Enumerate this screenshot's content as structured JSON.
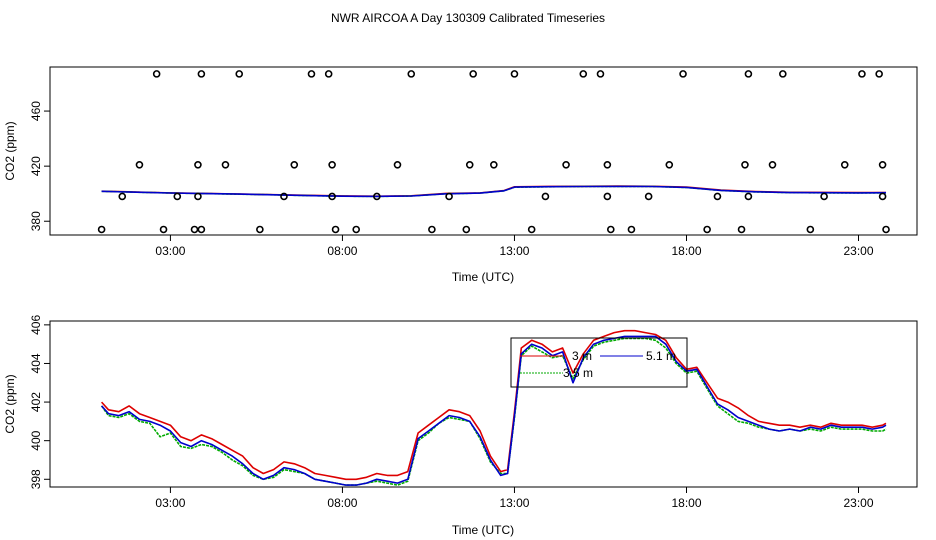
{
  "title": "NWR AIRCOA A  Day 130309  Calibrated Timeseries",
  "chart_data": [
    {
      "type": "scatter",
      "xlabel": "Time (UTC)",
      "ylabel": "CO2 (ppm)",
      "xlim": [
        -0.5,
        24.7
      ],
      "ylim": [
        370,
        492
      ],
      "x_ticks": [
        3,
        8,
        13,
        18,
        23
      ],
      "x_tick_labels": [
        "03:00",
        "08:00",
        "13:00",
        "18:00",
        "23:00"
      ],
      "y_ticks": [
        380,
        420,
        460
      ],
      "y_tick_labels": [
        "380",
        "420",
        "460"
      ],
      "calibration_points": {
        "x": [
          1.0,
          1.6,
          2.1,
          2.6,
          2.8,
          3.2,
          3.7,
          3.8,
          3.8,
          3.9,
          3.9,
          4.6,
          5.0,
          5.6,
          6.3,
          6.6,
          7.1,
          7.6,
          7.7,
          7.7,
          7.8,
          8.4,
          9.0,
          9.6,
          10.0,
          10.6,
          11.1,
          11.6,
          11.7,
          11.8,
          12.4,
          13.0,
          13.5,
          13.9,
          14.5,
          15.0,
          15.5,
          15.7,
          15.7,
          15.8,
          16.4,
          16.9,
          17.5,
          17.9,
          18.6,
          18.9,
          19.6,
          19.7,
          19.8,
          19.8,
          20.5,
          20.8,
          21.6,
          22.0,
          22.6,
          23.1,
          23.6,
          23.7,
          23.7,
          23.8
        ],
        "y": [
          374,
          398,
          421,
          487,
          374,
          398,
          374,
          421,
          398,
          487,
          374,
          421,
          487,
          374,
          398,
          421,
          487,
          487,
          421,
          398,
          374,
          374,
          398,
          421,
          487,
          374,
          398,
          374,
          421,
          487,
          421,
          487,
          374,
          398,
          421,
          487,
          487,
          421,
          398,
          374,
          374,
          398,
          421,
          487,
          374,
          398,
          374,
          421,
          398,
          487,
          421,
          487,
          374,
          398,
          421,
          487,
          487,
          421,
          398,
          374
        ]
      },
      "series": [
        {
          "name": "3 m",
          "color": "#dd0000",
          "x": [
            1,
            2,
            3,
            4,
            5,
            6,
            7,
            8,
            9,
            10,
            11,
            12,
            12.7,
            13,
            14,
            15,
            16,
            17,
            18,
            19,
            20,
            21,
            22,
            23,
            23.8
          ],
          "y": [
            401.8,
            401.2,
            400.6,
            400.2,
            399.8,
            399.3,
            398.8,
            398.4,
            398.2,
            398.5,
            400.2,
            400.6,
            402.3,
            405.0,
            405.3,
            405.4,
            405.5,
            405.4,
            404.8,
            402.6,
            401.6,
            401.0,
            400.9,
            400.8,
            400.8
          ]
        },
        {
          "name": "3.5 m",
          "color": "#00aa00",
          "x": [
            1,
            2,
            3,
            4,
            5,
            6,
            7,
            8,
            9,
            10,
            11,
            12,
            12.7,
            13,
            14,
            15,
            16,
            17,
            18,
            19,
            20,
            21,
            22,
            23,
            23.8
          ],
          "y": [
            401.7,
            401.1,
            400.5,
            400.1,
            399.6,
            399.2,
            398.6,
            398.2,
            398.0,
            398.3,
            399.9,
            400.4,
            402.1,
            404.7,
            405.0,
            405.2,
            405.3,
            405.2,
            404.5,
            402.3,
            401.3,
            400.8,
            400.6,
            400.6,
            400.6
          ]
        },
        {
          "name": "5.1 m",
          "color": "#0000cc",
          "x": [
            1,
            2,
            3,
            4,
            5,
            6,
            7,
            8,
            9,
            10,
            11,
            12,
            12.7,
            13,
            14,
            15,
            16,
            17,
            18,
            19,
            20,
            21,
            22,
            23,
            23.8
          ],
          "y": [
            401.7,
            401.1,
            400.5,
            400.1,
            399.7,
            399.2,
            398.6,
            398.2,
            398.0,
            398.3,
            399.9,
            400.4,
            402.1,
            404.8,
            405.1,
            405.2,
            405.3,
            405.2,
            404.6,
            402.4,
            401.4,
            400.8,
            400.7,
            400.6,
            400.7
          ]
        }
      ]
    },
    {
      "type": "line",
      "xlabel": "Time (UTC)",
      "ylabel": "CO2 (ppm)",
      "xlim": [
        -0.5,
        24.7
      ],
      "ylim": [
        397.6,
        406.2
      ],
      "x_ticks": [
        3,
        8,
        13,
        18,
        23
      ],
      "x_tick_labels": [
        "03:00",
        "08:00",
        "13:00",
        "18:00",
        "23:00"
      ],
      "y_ticks": [
        398,
        400,
        402,
        404,
        406
      ],
      "y_tick_labels": [
        "398",
        "400",
        "402",
        "404",
        "406"
      ],
      "legend": {
        "position": "top-center-right",
        "entries": [
          "3 m",
          "5.1 m",
          "3.5 m"
        ]
      },
      "series": [
        {
          "name": "3 m",
          "color": "#dd0000",
          "x": [
            1.0,
            1.2,
            1.5,
            1.8,
            2.1,
            2.4,
            2.7,
            3.0,
            3.3,
            3.6,
            3.9,
            4.2,
            4.5,
            4.8,
            5.1,
            5.4,
            5.7,
            6.0,
            6.3,
            6.6,
            6.9,
            7.2,
            7.5,
            7.8,
            8.1,
            8.4,
            8.7,
            9.0,
            9.3,
            9.6,
            9.9,
            10.2,
            10.5,
            10.8,
            11.1,
            11.4,
            11.7,
            12.0,
            12.3,
            12.6,
            12.8,
            13.0,
            13.2,
            13.5,
            13.8,
            14.1,
            14.4,
            14.7,
            15.0,
            15.3,
            15.6,
            15.9,
            16.2,
            16.5,
            16.8,
            17.1,
            17.4,
            17.7,
            18.0,
            18.3,
            18.6,
            18.9,
            19.2,
            19.5,
            19.8,
            20.1,
            20.4,
            20.7,
            21.0,
            21.3,
            21.6,
            21.9,
            22.2,
            22.5,
            22.8,
            23.1,
            23.4,
            23.7,
            23.8
          ],
          "y": [
            402.0,
            401.6,
            401.5,
            401.8,
            401.4,
            401.2,
            401.0,
            400.8,
            400.2,
            400.0,
            400.3,
            400.1,
            399.8,
            399.5,
            399.2,
            398.6,
            398.3,
            398.5,
            398.9,
            398.8,
            398.6,
            398.3,
            398.2,
            398.1,
            398.0,
            398.0,
            398.1,
            398.3,
            398.2,
            398.2,
            398.4,
            400.4,
            400.8,
            401.2,
            401.6,
            401.5,
            401.3,
            400.5,
            399.2,
            398.4,
            398.5,
            401.5,
            404.8,
            405.2,
            405.0,
            404.6,
            404.8,
            403.5,
            404.5,
            405.2,
            405.4,
            405.6,
            405.7,
            405.7,
            405.6,
            405.5,
            405.2,
            404.3,
            403.7,
            403.8,
            403.0,
            402.2,
            402.0,
            401.7,
            401.3,
            401.0,
            400.9,
            400.8,
            400.8,
            400.7,
            400.8,
            400.7,
            400.9,
            400.8,
            400.8,
            400.8,
            400.7,
            400.8,
            400.9
          ]
        },
        {
          "name": "3.5 m",
          "color": "#00aa00",
          "x": [
            1.0,
            1.2,
            1.5,
            1.8,
            2.1,
            2.4,
            2.7,
            3.0,
            3.3,
            3.6,
            3.9,
            4.2,
            4.5,
            4.8,
            5.1,
            5.4,
            5.7,
            6.0,
            6.3,
            6.6,
            6.9,
            7.2,
            7.5,
            7.8,
            8.1,
            8.4,
            8.7,
            9.0,
            9.3,
            9.6,
            9.9,
            10.2,
            10.5,
            10.8,
            11.1,
            11.4,
            11.7,
            12.0,
            12.3,
            12.6,
            12.8,
            13.0,
            13.2,
            13.5,
            13.8,
            14.1,
            14.4,
            14.7,
            15.0,
            15.3,
            15.6,
            15.9,
            16.2,
            16.5,
            16.8,
            17.1,
            17.4,
            17.7,
            18.0,
            18.3,
            18.6,
            18.9,
            19.2,
            19.5,
            19.8,
            20.1,
            20.4,
            20.7,
            21.0,
            21.3,
            21.6,
            21.9,
            22.2,
            22.5,
            22.8,
            23.1,
            23.4,
            23.7,
            23.8
          ],
          "y": [
            401.8,
            401.3,
            401.2,
            401.4,
            401.0,
            400.9,
            400.2,
            400.4,
            399.7,
            399.6,
            399.8,
            399.7,
            399.4,
            399.0,
            398.7,
            398.2,
            398.0,
            398.1,
            398.5,
            398.4,
            398.3,
            398.0,
            397.9,
            397.8,
            397.7,
            397.7,
            397.8,
            397.9,
            397.8,
            397.7,
            397.9,
            400.0,
            400.4,
            400.9,
            401.2,
            401.1,
            401.0,
            400.1,
            398.9,
            398.3,
            398.3,
            401.2,
            404.4,
            404.9,
            404.6,
            404.3,
            404.4,
            403.2,
            404.2,
            404.9,
            405.1,
            405.2,
            405.3,
            405.3,
            405.3,
            405.2,
            404.8,
            404.0,
            403.5,
            403.6,
            402.7,
            401.8,
            401.4,
            401.0,
            400.9,
            400.7,
            400.6,
            400.5,
            400.6,
            400.5,
            400.6,
            400.5,
            400.7,
            400.6,
            400.6,
            400.6,
            400.5,
            400.5,
            400.6
          ]
        },
        {
          "name": "5.1 m",
          "color": "#0000cc",
          "x": [
            1.0,
            1.2,
            1.5,
            1.8,
            2.1,
            2.4,
            2.7,
            3.0,
            3.3,
            3.6,
            3.9,
            4.2,
            4.5,
            4.8,
            5.1,
            5.4,
            5.7,
            6.0,
            6.3,
            6.6,
            6.9,
            7.2,
            7.5,
            7.8,
            8.1,
            8.4,
            8.7,
            9.0,
            9.3,
            9.6,
            9.9,
            10.2,
            10.5,
            10.8,
            11.1,
            11.4,
            11.7,
            12.0,
            12.3,
            12.6,
            12.8,
            13.0,
            13.2,
            13.5,
            13.8,
            14.1,
            14.4,
            14.7,
            15.0,
            15.3,
            15.6,
            15.9,
            16.2,
            16.5,
            16.8,
            17.1,
            17.4,
            17.7,
            18.0,
            18.3,
            18.6,
            18.9,
            19.2,
            19.5,
            19.8,
            20.1,
            20.4,
            20.7,
            21.0,
            21.3,
            21.6,
            21.9,
            22.2,
            22.5,
            22.8,
            23.1,
            23.4,
            23.7,
            23.8
          ],
          "y": [
            401.8,
            401.4,
            401.3,
            401.5,
            401.1,
            401.0,
            400.8,
            400.5,
            399.9,
            399.7,
            400.0,
            399.8,
            399.5,
            399.2,
            398.8,
            398.3,
            398.0,
            398.2,
            398.6,
            398.5,
            398.3,
            398.0,
            397.9,
            397.8,
            397.7,
            397.7,
            397.8,
            398.0,
            397.9,
            397.8,
            398.0,
            400.1,
            400.5,
            400.9,
            401.3,
            401.2,
            401.0,
            400.2,
            399.0,
            398.2,
            398.3,
            401.3,
            404.5,
            405.0,
            404.8,
            404.4,
            404.6,
            403.0,
            404.3,
            405.0,
            405.2,
            405.3,
            405.4,
            405.4,
            405.4,
            405.4,
            405.0,
            404.1,
            403.6,
            403.7,
            402.8,
            401.9,
            401.6,
            401.2,
            401.0,
            400.8,
            400.6,
            400.5,
            400.6,
            400.5,
            400.7,
            400.6,
            400.8,
            400.7,
            400.7,
            400.7,
            400.6,
            400.7,
            400.8
          ]
        }
      ]
    }
  ]
}
